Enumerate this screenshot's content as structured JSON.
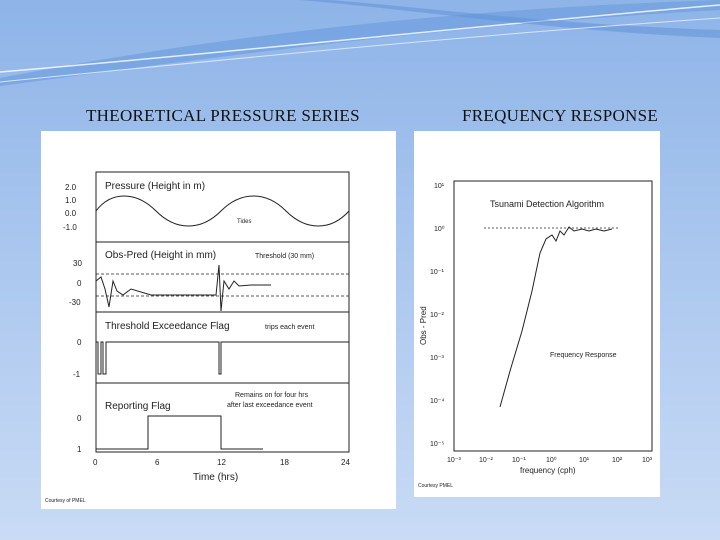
{
  "slide": {
    "left_heading": "THEORETICAL PRESSURE SERIES",
    "right_heading": "FREQUENCY RESPONSE"
  },
  "pressure_figure": {
    "panels": [
      {
        "title": "Pressure (Height in m)",
        "annotation": "Tides",
        "yticks": [
          "2.0",
          "1.0",
          "0.0",
          "-1.0"
        ]
      },
      {
        "title": "Obs-Pred (Height in mm)",
        "annotation": "Threshold (30 mm)",
        "yticks": [
          "30",
          "0",
          "-30"
        ]
      },
      {
        "title": "Threshold Exceedance Flag",
        "annotation": "trips each event",
        "yticks": [
          "0",
          "-1"
        ]
      },
      {
        "title": "Reporting Flag",
        "annotation_line1": "Remains on for four hrs",
        "annotation_line2": "after last exceedance event",
        "yticks": [
          "0",
          "1"
        ]
      }
    ],
    "xticks": [
      "0",
      "6",
      "12",
      "18",
      "24"
    ],
    "xlabel": "Time (hrs)",
    "credit": "Courtesy of PMEL"
  },
  "response_figure": {
    "title": "Tsunami Detection Algorithm",
    "ylabel": "Obs - Pred",
    "xlabel": "frequency (cph)",
    "curve_label": "Frequency Response",
    "yticks": [
      "10¹",
      "10⁰",
      "10⁻¹",
      "10⁻²",
      "10⁻³",
      "10⁻⁴",
      "10⁻⁵"
    ],
    "xticks": [
      "10⁻³",
      "10⁻²",
      "10⁻¹",
      "10⁰",
      "10¹",
      "10²",
      "10³"
    ],
    "credit": "Courtesy PMEL"
  },
  "colors": {
    "curve": "#333333",
    "panel_bg": "#ffffff",
    "heading": "#111111"
  }
}
